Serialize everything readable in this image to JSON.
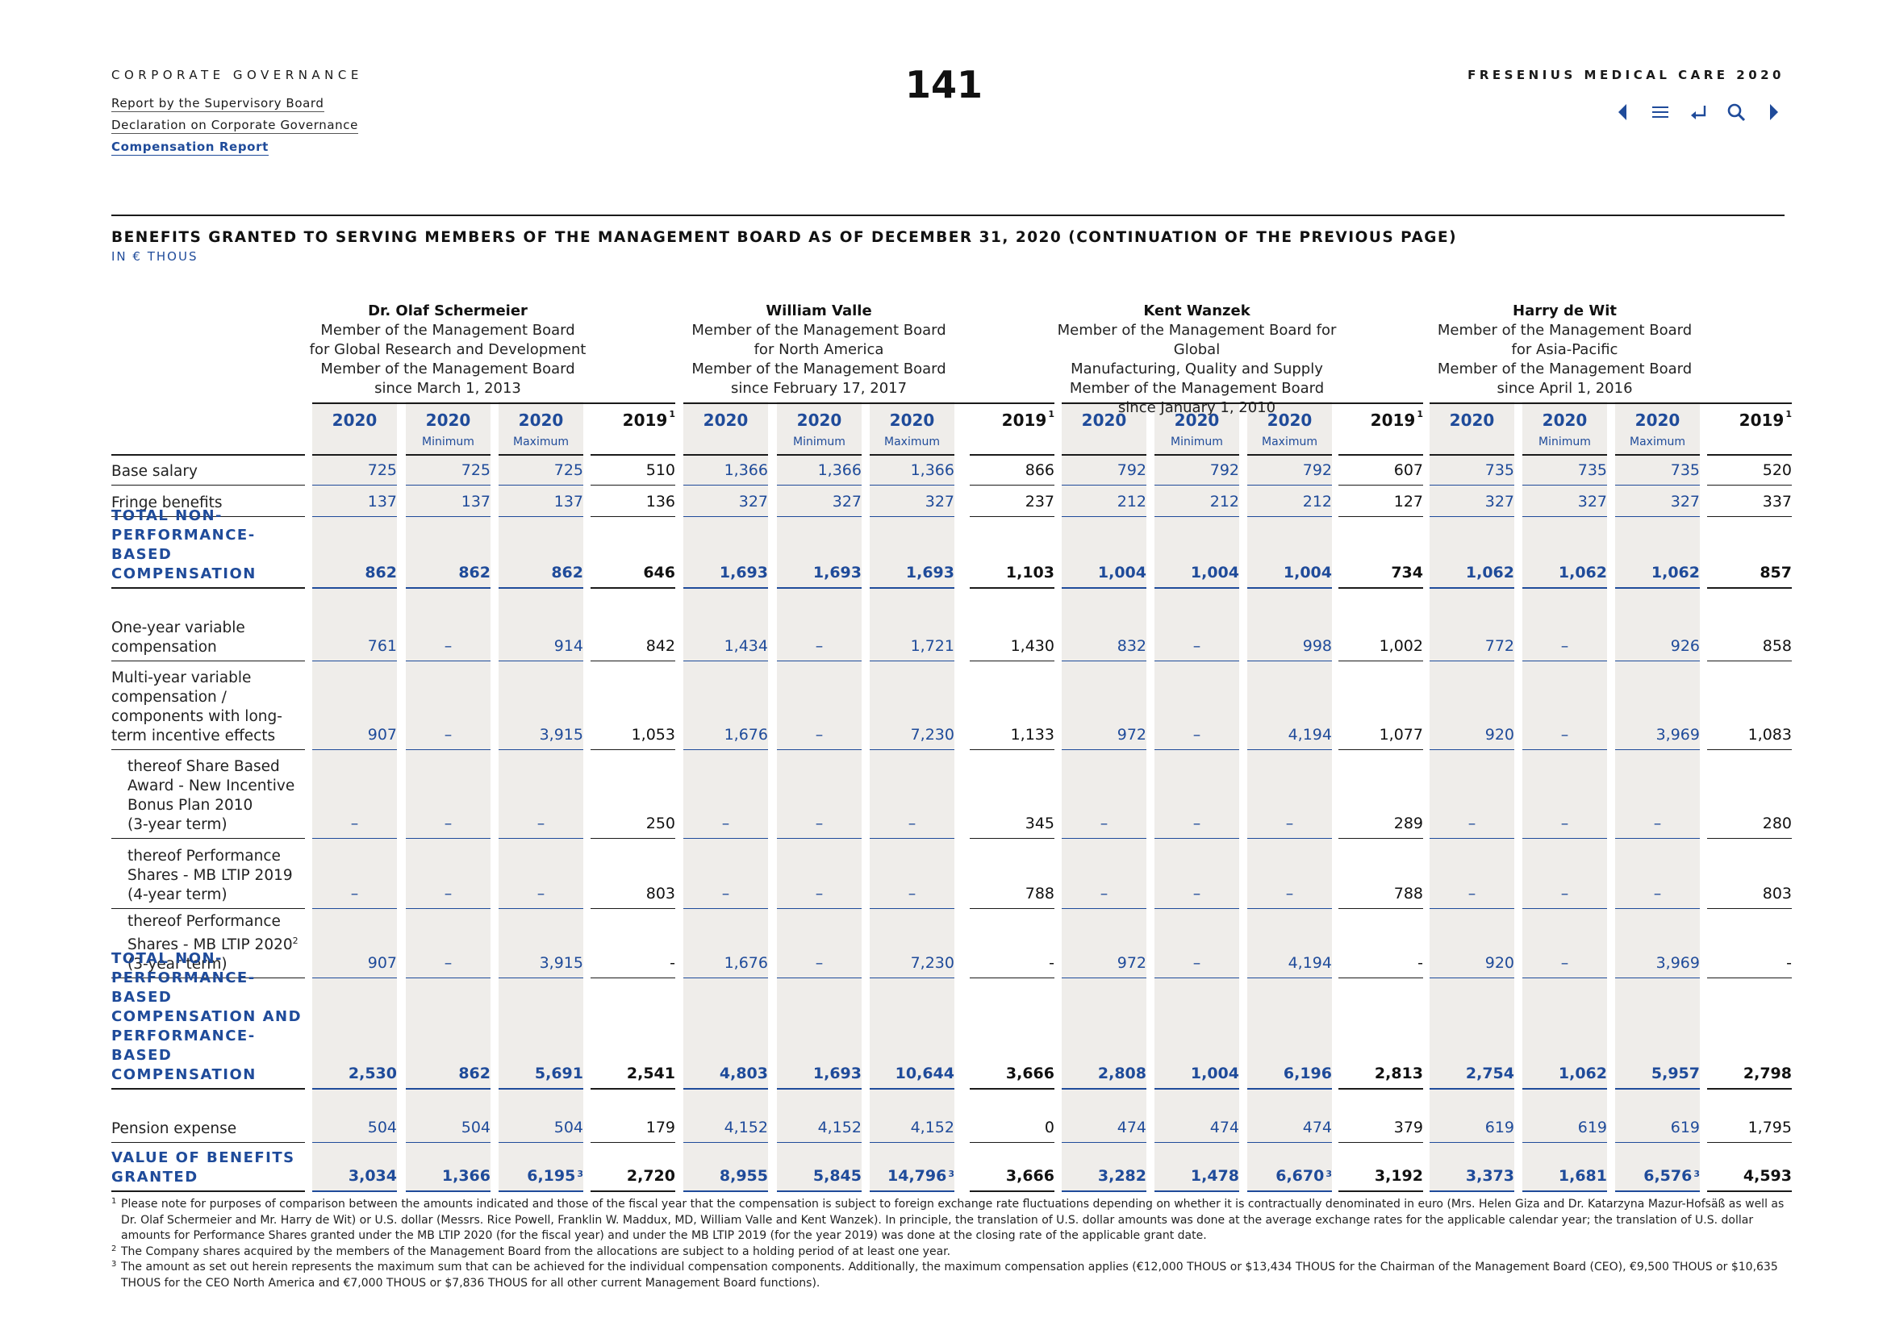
{
  "header": {
    "section": "CORPORATE GOVERNANCE",
    "nav": [
      {
        "label": "Report by the Supervisory Board",
        "active": false
      },
      {
        "label": "Declaration on Corporate Governance",
        "active": false
      },
      {
        "label": "Compensation Report",
        "active": true
      }
    ],
    "page_number": "141",
    "brand": "FRESENIUS MEDICAL CARE 2020",
    "toolbar": [
      "previous-page-icon",
      "menu-icon",
      "back-icon",
      "search-icon",
      "next-page-icon"
    ]
  },
  "colors": {
    "accent": "#1f4b9a",
    "shade": "#efedea",
    "text": "#1a1a1a"
  },
  "table": {
    "title": "BENEFITS GRANTED TO SERVING MEMBERS OF THE MANAGEMENT BOARD AS OF DECEMBER 31, 2020 (CONTINUATION OF THE PREVIOUS PAGE)",
    "subtitle": "IN € THOUS",
    "persons": [
      {
        "name": "Dr. Olaf Schermeier",
        "role_lines": [
          "Member of the Management Board",
          "for Global Research and Development",
          "Member of the Management Board",
          "since March 1, 2013"
        ]
      },
      {
        "name": "William Valle",
        "role_lines": [
          "Member of the Management Board",
          "for North America",
          "Member of the Management Board",
          "since February 17, 2017"
        ]
      },
      {
        "name": "Kent Wanzek",
        "role_lines": [
          "Member of the Management Board for Global",
          "Manufacturing, Quality and Supply",
          "Member of the Management Board",
          "since January 1, 2010"
        ]
      },
      {
        "name": "Harry de Wit",
        "role_lines": [
          "Member of the Management Board",
          "for Asia-Pacific",
          "Member of the Management Board",
          "since April 1, 2016"
        ]
      }
    ],
    "columns": [
      {
        "year": "2020",
        "sub": ""
      },
      {
        "year": "2020",
        "sub": "Minimum"
      },
      {
        "year": "2020",
        "sub": "Maximum"
      },
      {
        "year": "2019",
        "sub": "",
        "note": "1"
      }
    ],
    "rows": [
      {
        "label": "Base salary",
        "total": false,
        "indent": false,
        "values": [
          "725",
          "725",
          "725",
          "510",
          "1,366",
          "1,366",
          "1,366",
          "866",
          "792",
          "792",
          "792",
          "607",
          "735",
          "735",
          "735",
          "520"
        ]
      },
      {
        "label": "Fringe benefits",
        "total": false,
        "indent": false,
        "values": [
          "137",
          "137",
          "137",
          "136",
          "327",
          "327",
          "327",
          "237",
          "212",
          "212",
          "212",
          "127",
          "327",
          "327",
          "327",
          "337"
        ]
      },
      {
        "label": "TOTAL NON-\nPERFORMANCE-BASED\nCOMPENSATION",
        "total": true,
        "indent": false,
        "values": [
          "862",
          "862",
          "862",
          "646",
          "1,693",
          "1,693",
          "1,693",
          "1,103",
          "1,004",
          "1,004",
          "1,004",
          "734",
          "1,062",
          "1,062",
          "1,062",
          "857"
        ]
      },
      {
        "label": "One-year variable\ncompensation",
        "total": false,
        "indent": false,
        "values": [
          "761",
          "–",
          "914",
          "842",
          "1,434",
          "–",
          "1,721",
          "1,430",
          "832",
          "–",
          "998",
          "1,002",
          "772",
          "–",
          "926",
          "858"
        ]
      },
      {
        "label": "Multi-year variable\ncompensation /\ncomponents with long-\nterm incentive effects",
        "total": false,
        "indent": false,
        "values": [
          "907",
          "–",
          "3,915",
          "1,053",
          "1,676",
          "–",
          "7,230",
          "1,133",
          "972",
          "–",
          "4,194",
          "1,077",
          "920",
          "–",
          "3,969",
          "1,083"
        ]
      },
      {
        "label": "thereof Share Based\nAward - New Incentive\nBonus Plan 2010\n(3-year term)",
        "total": false,
        "indent": true,
        "values": [
          "–",
          "–",
          "–",
          "250",
          "–",
          "–",
          "–",
          "345",
          "–",
          "–",
          "–",
          "289",
          "–",
          "–",
          "–",
          "280"
        ]
      },
      {
        "label": "thereof Performance\nShares - MB LTIP 2019\n(4-year term)",
        "total": false,
        "indent": true,
        "values": [
          "–",
          "–",
          "–",
          "803",
          "–",
          "–",
          "–",
          "788",
          "–",
          "–",
          "–",
          "788",
          "–",
          "–",
          "–",
          "803"
        ]
      },
      {
        "label": "thereof Performance\nShares - MB LTIP 2020",
        "label_note": "2",
        "label_last": "(3-year term)",
        "total": false,
        "indent": true,
        "values": [
          "907",
          "–",
          "3,915",
          "-",
          "1,676",
          "–",
          "7,230",
          "-",
          "972",
          "–",
          "4,194",
          "-",
          "920",
          "–",
          "3,969",
          "-"
        ]
      },
      {
        "label": "TOTAL NON-\nPERFORMANCE-BASED\nCOMPENSATION AND\nPERFORMANCE-BASED\nCOMPENSATION",
        "total": true,
        "indent": false,
        "values": [
          "2,530",
          "862",
          "5,691",
          "2,541",
          "4,803",
          "1,693",
          "10,644",
          "3,666",
          "2,808",
          "1,004",
          "6,196",
          "2,813",
          "2,754",
          "1,062",
          "5,957",
          "2,798"
        ]
      },
      {
        "label": "Pension expense",
        "total": false,
        "indent": false,
        "values": [
          "504",
          "504",
          "504",
          "179",
          "4,152",
          "4,152",
          "4,152",
          "0",
          "474",
          "474",
          "474",
          "379",
          "619",
          "619",
          "619",
          "1,795"
        ]
      },
      {
        "label": "VALUE OF BENEFITS\nGRANTED",
        "total": true,
        "indent": false,
        "values": [
          "3,034",
          "1,366",
          "6,195",
          "2,720",
          "8,955",
          "5,845",
          "14,796",
          "3,666",
          "3,282",
          "1,478",
          "6,670",
          "3,192",
          "3,373",
          "1,681",
          "6,576",
          "4,593"
        ],
        "notes": {
          "2": "3",
          "6": "3",
          "10": "3",
          "14": "3"
        }
      }
    ]
  },
  "footnotes": [
    {
      "mark": "1",
      "text": "Please note for purposes of comparison between the amounts indicated and those of the fiscal year that the compensation is subject to foreign exchange rate fluctuations depending on whether it is contractually denominated in euro (Mrs. Helen Giza and Dr. Katarzyna Mazur-Hofsäß as well as Dr. Olaf Schermeier and Mr. Harry de Wit) or U.S. dollar (Messrs. Rice Powell, Franklin W. Maddux, MD, William Valle and Kent Wanzek). In principle, the translation of U.S. dollar amounts was done at the average exchange rates for the applicable calendar year; the translation of U.S. dollar amounts for Performance Shares granted under the MB LTIP 2020 (for the fiscal year) and under the MB LTIP 2019 (for the year 2019) was done at the closing rate of the applicable grant date."
    },
    {
      "mark": "2",
      "text": "The Company shares acquired by the members of the Management Board from the allocations are subject to a holding period of at least one year."
    },
    {
      "mark": "3",
      "text": "The amount as set out herein represents the maximum sum that can be achieved for the individual compensation components. Additionally, the maximum compensation applies (€12,000 THOUS or $13,434 THOUS for the Chairman of the Management Board (CEO), €9,500 THOUS or $10,635 THOUS for the CEO North America and €7,000 THOUS or $7,836 THOUS for all other current Management Board functions)."
    }
  ]
}
